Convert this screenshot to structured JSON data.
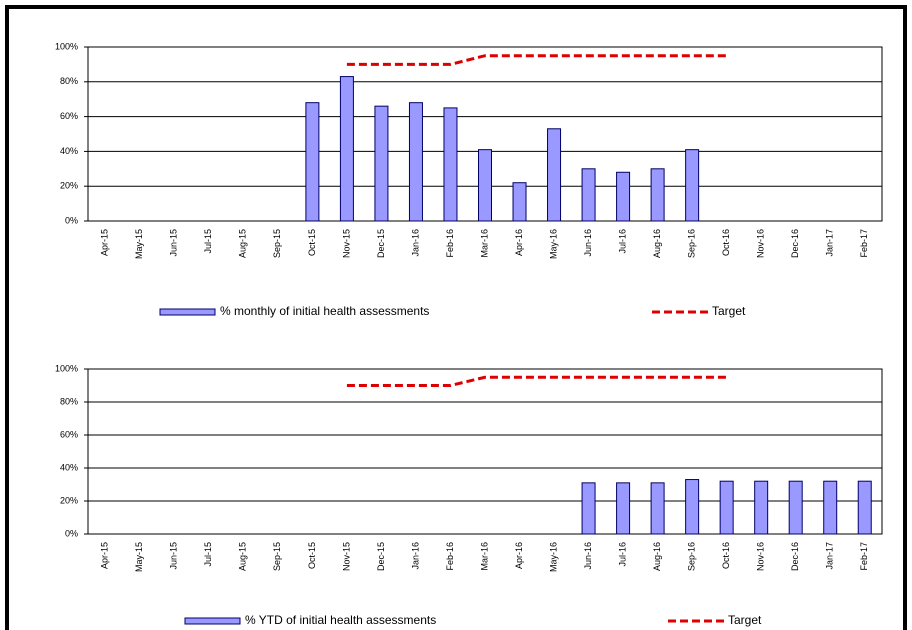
{
  "chart_data": [
    {
      "type": "bar",
      "categories": [
        "Apr-15",
        "May-15",
        "Jun-15",
        "Jul-15",
        "Aug-15",
        "Sep-15",
        "Oct-15",
        "Nov-15",
        "Dec-15",
        "Jan-16",
        "Feb-16",
        "Mar-16",
        "Apr-16",
        "May-16",
        "Jun-16",
        "Jul-16",
        "Aug-16",
        "Sep-16",
        "Oct-16",
        "Nov-16",
        "Dec-16",
        "Jan-17",
        "Feb-17"
      ],
      "series": [
        {
          "name": "% monthly of initial health assessments",
          "type": "bar",
          "color": "#9999ff",
          "values": [
            null,
            null,
            null,
            null,
            null,
            null,
            68,
            83,
            66,
            68,
            65,
            41,
            22,
            53,
            30,
            28,
            30,
            41,
            null,
            null,
            null,
            null,
            null
          ]
        },
        {
          "name": "Target",
          "type": "line",
          "color": "#dd0000",
          "values": [
            null,
            null,
            null,
            null,
            null,
            null,
            null,
            90,
            90,
            90,
            90,
            95,
            95,
            95,
            95,
            95,
            95,
            95,
            95,
            null,
            null,
            null,
            null
          ]
        }
      ],
      "ylim": [
        0,
        100
      ],
      "yticks": [
        {
          "value": 0,
          "label": "0%"
        },
        {
          "value": 20,
          "label": "20%"
        },
        {
          "value": 40,
          "label": "40%"
        },
        {
          "value": 60,
          "label": "60%"
        },
        {
          "value": 80,
          "label": "80%"
        },
        {
          "value": 100,
          "label": "100%"
        }
      ],
      "grid": true
    },
    {
      "type": "bar",
      "categories": [
        "Apr-15",
        "May-15",
        "Jun-15",
        "Jul-15",
        "Aug-15",
        "Sep-15",
        "Oct-15",
        "Nov-15",
        "Dec-15",
        "Jan-16",
        "Feb-16",
        "Mar-16",
        "Apr-16",
        "May-16",
        "Jun-16",
        "Jul-16",
        "Aug-16",
        "Sep-16",
        "Oct-16",
        "Nov-16",
        "Dec-16",
        "Jan-17",
        "Feb-17"
      ],
      "series": [
        {
          "name": "% YTD of initial health assessments",
          "type": "bar",
          "color": "#9999ff",
          "values": [
            null,
            null,
            null,
            null,
            null,
            null,
            null,
            null,
            null,
            null,
            null,
            null,
            null,
            null,
            31,
            31,
            31,
            33,
            32,
            32,
            32,
            32,
            32
          ]
        },
        {
          "name": "Target",
          "type": "line",
          "color": "#dd0000",
          "values": [
            null,
            null,
            null,
            null,
            null,
            null,
            null,
            90,
            90,
            90,
            90,
            95,
            95,
            95,
            95,
            95,
            95,
            95,
            95,
            null,
            null,
            null,
            null
          ]
        }
      ],
      "ylim": [
        0,
        100
      ],
      "yticks": [
        {
          "value": 0,
          "label": "0%"
        },
        {
          "value": 20,
          "label": "20%"
        },
        {
          "value": 40,
          "label": "40%"
        },
        {
          "value": 60,
          "label": "60%"
        },
        {
          "value": 80,
          "label": "80%"
        },
        {
          "value": 100,
          "label": "100%"
        }
      ],
      "grid": true
    }
  ]
}
